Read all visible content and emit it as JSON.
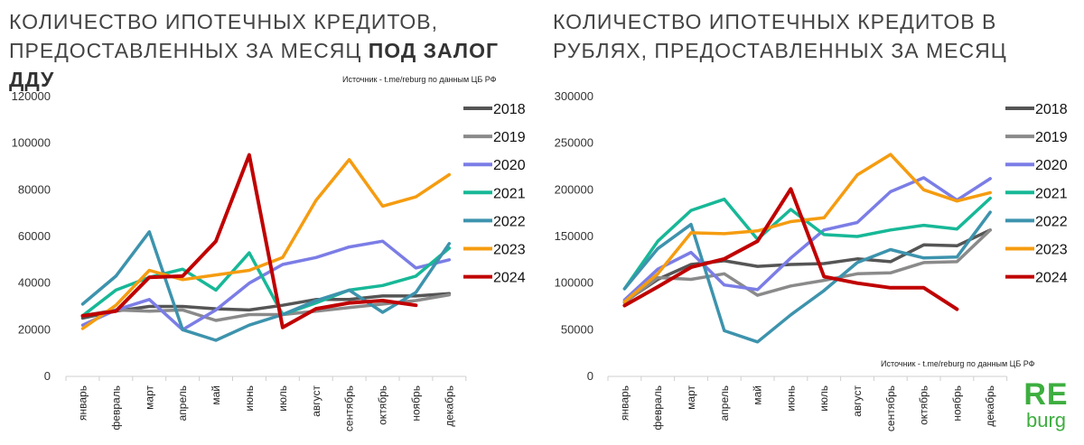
{
  "left": {
    "title_line1": "КОЛИЧЕСТВО ИПОТЕЧНЫХ КРЕДИТОВ,",
    "title_line2_prefix": "ПРЕДОСТАВЛЕННЫХ ЗА МЕСЯЦ ",
    "title_line2_bold": "ПОД ЗАЛОГ ДДУ",
    "source": "Источник  - t.me/reburg по данным  ЦБ РФ"
  },
  "right": {
    "title_line1": "КОЛИЧЕСТВО ИПОТЕЧНЫХ КРЕДИТОВ В",
    "title_line2": "РУБЛЯХ, ПРЕДОСТАВЛЕННЫХ ЗА МЕСЯЦ",
    "source": "Источник  - t.me/reburg по данным  ЦБ РФ"
  },
  "logo": {
    "re": "RE",
    "burg": "burg",
    "color": "#3dae3f"
  },
  "chart_data": [
    {
      "type": "line",
      "categories": [
        "январь",
        "февраль",
        "март",
        "апрель",
        "май",
        "июнь",
        "июль",
        "август",
        "сентябрь",
        "октябрь",
        "ноябрь",
        "декабрь"
      ],
      "ylim": [
        0,
        120000
      ],
      "yticks": [
        0,
        20000,
        40000,
        60000,
        80000,
        100000,
        120000
      ],
      "legend_position": "right",
      "grid": false,
      "series": [
        {
          "name": "2018",
          "color": "#555555",
          "values": [
            25000,
            28000,
            30000,
            30000,
            29000,
            28500,
            30500,
            33000,
            33000,
            34500,
            34500,
            35500
          ]
        },
        {
          "name": "2019",
          "color": "#8a8a8a",
          "values": [
            26000,
            28500,
            28000,
            28500,
            24000,
            26500,
            26500,
            28000,
            29500,
            31000,
            32500,
            35000
          ]
        },
        {
          "name": "2020",
          "color": "#7b7de6",
          "values": [
            22000,
            28500,
            33000,
            20000,
            28500,
            40000,
            48000,
            51000,
            55500,
            58000,
            46500,
            50000
          ]
        },
        {
          "name": "2021",
          "color": "#17b897",
          "values": [
            26000,
            37000,
            42500,
            46000,
            37000,
            53000,
            26500,
            31500,
            37000,
            39000,
            43000,
            55000
          ]
        },
        {
          "name": "2022",
          "color": "#3d93ad",
          "values": [
            31000,
            43000,
            62000,
            20000,
            15500,
            22000,
            26500,
            32500,
            37000,
            27500,
            36000,
            57000
          ]
        },
        {
          "name": "2023",
          "color": "#f59c10",
          "values": [
            20500,
            30500,
            45500,
            41500,
            43500,
            45500,
            51000,
            75500,
            93000,
            73000,
            77000,
            86500
          ]
        },
        {
          "name": "2024",
          "color": "#c00000",
          "values": [
            26000,
            28000,
            42500,
            43000,
            58000,
            95000,
            21000,
            29000,
            31500,
            32500,
            30500,
            null
          ]
        }
      ]
    },
    {
      "type": "line",
      "categories": [
        "январь",
        "февраль",
        "март",
        "апрель",
        "май",
        "июнь",
        "июль",
        "август",
        "сентябрь",
        "октябрь",
        "ноябрь",
        "декабрь"
      ],
      "ylim": [
        0,
        300000
      ],
      "yticks": [
        0,
        50000,
        100000,
        150000,
        200000,
        250000,
        300000
      ],
      "legend_position": "right",
      "grid": false,
      "series": [
        {
          "name": "2018",
          "color": "#555555",
          "values": [
            80000,
            104000,
            120000,
            124000,
            118000,
            120000,
            121000,
            126000,
            123000,
            141000,
            140000,
            157000
          ]
        },
        {
          "name": "2019",
          "color": "#8a8a8a",
          "values": [
            79000,
            106000,
            104000,
            110000,
            87000,
            97000,
            103000,
            110000,
            111000,
            122000,
            123000,
            157000
          ]
        },
        {
          "name": "2020",
          "color": "#7b7de6",
          "values": [
            82000,
            115000,
            133000,
            98000,
            93000,
            127000,
            157000,
            165000,
            198000,
            213000,
            189000,
            212000
          ]
        },
        {
          "name": "2021",
          "color": "#17b897",
          "values": [
            94000,
            145000,
            178000,
            190000,
            147000,
            179000,
            152000,
            150000,
            157000,
            162000,
            158000,
            191000
          ]
        },
        {
          "name": "2022",
          "color": "#3d93ad",
          "values": [
            94000,
            137000,
            163000,
            49000,
            37000,
            66000,
            92000,
            122000,
            136000,
            127000,
            128000,
            176000
          ]
        },
        {
          "name": "2023",
          "color": "#f59c10",
          "values": [
            80000,
            110000,
            154000,
            153000,
            156000,
            166000,
            170000,
            216000,
            238000,
            200000,
            188000,
            197000
          ]
        },
        {
          "name": "2024",
          "color": "#c00000",
          "values": [
            76000,
            96000,
            117000,
            126000,
            145000,
            201000,
            107000,
            100000,
            95000,
            95000,
            72000,
            null
          ]
        }
      ]
    }
  ]
}
